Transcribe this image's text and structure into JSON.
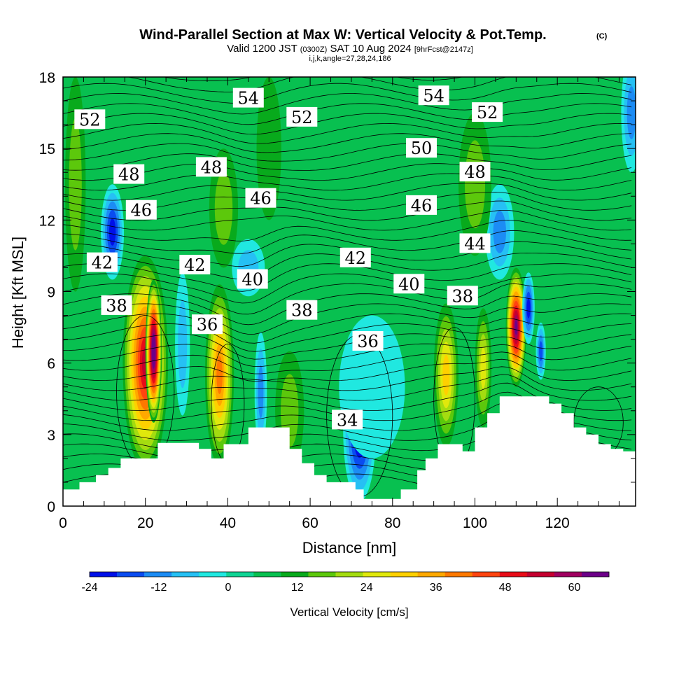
{
  "chart_data": {
    "type": "heatmap",
    "title": "Wind-Parallel Section at Max W: Vertical Velocity & Pot.Temp.",
    "title_mark": "(C)",
    "subtitle_main": "Valid 1200 JST",
    "subtitle_utc": "(0300Z)",
    "subtitle_date": "SAT 10 Aug 2024",
    "subtitle_fcst": "[9hrFcst@2147z]",
    "subtitle_indices": "i,j,k,angle=27,28,24,186",
    "xlabel": "Distance [nm]",
    "ylabel": "Height [Kft MSL]",
    "xlim": [
      0,
      139
    ],
    "ylim": [
      0,
      18
    ],
    "xticks": [
      "0",
      "20",
      "40",
      "60",
      "80",
      "100",
      "120"
    ],
    "yticks": [
      "0",
      "3",
      "6",
      "9",
      "12",
      "15",
      "18"
    ],
    "colorbar": {
      "label": "Vertical Velocity [cm/s]",
      "min": -24,
      "max": 66,
      "step": 4,
      "tick_labels": [
        "-24",
        "-12",
        "0",
        "12",
        "24",
        "36",
        "48",
        "60"
      ],
      "colors": [
        "#0010e8",
        "#0a4cf0",
        "#1c8cf4",
        "#26c0f4",
        "#20e8e0",
        "#10d494",
        "#08c050",
        "#08aa1c",
        "#5cc80c",
        "#a4dc10",
        "#e0e80c",
        "#ffd000",
        "#ffa800",
        "#ff7800",
        "#ff4410",
        "#e80c18",
        "#c40030",
        "#a00060",
        "#6c0088"
      ]
    },
    "terrain_kft": [
      [
        0,
        0.7
      ],
      [
        4,
        1.0
      ],
      [
        8,
        1.3
      ],
      [
        11,
        1.6
      ],
      [
        14,
        2.0
      ],
      [
        23,
        2.65
      ],
      [
        33,
        2.4
      ],
      [
        36,
        2.0
      ],
      [
        39,
        2.6
      ],
      [
        45,
        3.3
      ],
      [
        55,
        2.4
      ],
      [
        58,
        1.8
      ],
      [
        61,
        1.3
      ],
      [
        64,
        1.0
      ],
      [
        71,
        0.7
      ],
      [
        73,
        0.3
      ],
      [
        79,
        0.3
      ],
      [
        82,
        0.7
      ],
      [
        86,
        1.5
      ],
      [
        88,
        2.0
      ],
      [
        91,
        2.6
      ],
      [
        97,
        2.3
      ],
      [
        100,
        3.3
      ],
      [
        103,
        3.9
      ],
      [
        106,
        4.6
      ],
      [
        115,
        4.6
      ],
      [
        118,
        4.3
      ],
      [
        121,
        3.9
      ],
      [
        124,
        3.3
      ],
      [
        127,
        3.0
      ],
      [
        130,
        2.6
      ],
      [
        133,
        2.4
      ],
      [
        136,
        2.3
      ],
      [
        139,
        2.3
      ]
    ],
    "vertical_velocity_cells": [
      {
        "x": 3,
        "y": 13.5,
        "rx": 2.5,
        "ry": 4.5,
        "w": 8
      },
      {
        "x": 12,
        "y": 11.5,
        "rx": 2.8,
        "ry": 2.0,
        "w": -20
      },
      {
        "x": 20,
        "y": 6.0,
        "rx": 5.5,
        "ry": 4.5,
        "w": 40
      },
      {
        "x": 22,
        "y": 6.5,
        "rx": 2.0,
        "ry": 3.0,
        "w": 56
      },
      {
        "x": 29,
        "y": 6.8,
        "rx": 1.8,
        "ry": 3.0,
        "w": -10
      },
      {
        "x": 38,
        "y": 5.5,
        "rx": 3.5,
        "ry": 3.8,
        "w": 28
      },
      {
        "x": 48,
        "y": 4.8,
        "rx": 1.5,
        "ry": 2.5,
        "w": -14
      },
      {
        "x": 55,
        "y": 4.0,
        "rx": 3.5,
        "ry": 2.5,
        "w": 10
      },
      {
        "x": 72,
        "y": 3.2,
        "rx": 4.0,
        "ry": 3.0,
        "w": -24
      },
      {
        "x": 75,
        "y": 5.0,
        "rx": 8.0,
        "ry": 3.0,
        "w": -6
      },
      {
        "x": 93,
        "y": 5.5,
        "rx": 3.0,
        "ry": 3.0,
        "w": 20
      },
      {
        "x": 102,
        "y": 5.8,
        "rx": 2.0,
        "ry": 2.5,
        "w": 16
      },
      {
        "x": 110,
        "y": 7.5,
        "rx": 2.5,
        "ry": 2.5,
        "w": 50
      },
      {
        "x": 113,
        "y": 8.3,
        "rx": 1.5,
        "ry": 1.5,
        "w": -22
      },
      {
        "x": 116,
        "y": 6.5,
        "rx": 1.2,
        "ry": 1.2,
        "w": -16
      },
      {
        "x": 106,
        "y": 11.5,
        "rx": 3.5,
        "ry": 2.0,
        "w": -12
      },
      {
        "x": 100,
        "y": 13.5,
        "rx": 4.0,
        "ry": 3.0,
        "w": 8
      },
      {
        "x": 39,
        "y": 12.5,
        "rx": 3.5,
        "ry": 2.5,
        "w": 10
      },
      {
        "x": 45,
        "y": 10.0,
        "rx": 4.0,
        "ry": 1.2,
        "w": -10
      },
      {
        "x": 50,
        "y": 15.0,
        "rx": 3.0,
        "ry": 3.0,
        "w": 6
      },
      {
        "x": 138,
        "y": 16.5,
        "rx": 2.5,
        "ry": 2.5,
        "w": -12
      }
    ],
    "theta_contour_labels": [
      {
        "text": "52",
        "x": 6.5,
        "y": 16.2
      },
      {
        "text": "54",
        "x": 45,
        "y": 17.1
      },
      {
        "text": "52",
        "x": 58,
        "y": 16.3
      },
      {
        "text": "54",
        "x": 90,
        "y": 17.2
      },
      {
        "text": "52",
        "x": 103,
        "y": 16.5
      },
      {
        "text": "48",
        "x": 16,
        "y": 13.9
      },
      {
        "text": "48",
        "x": 36,
        "y": 14.2
      },
      {
        "text": "50",
        "x": 87,
        "y": 15.0
      },
      {
        "text": "48",
        "x": 100,
        "y": 14.0
      },
      {
        "text": "46",
        "x": 19,
        "y": 12.4
      },
      {
        "text": "46",
        "x": 48,
        "y": 12.9
      },
      {
        "text": "46",
        "x": 87,
        "y": 12.6
      },
      {
        "text": "44",
        "x": 100,
        "y": 11.0
      },
      {
        "text": "42",
        "x": 9.5,
        "y": 10.2
      },
      {
        "text": "42",
        "x": 32,
        "y": 10.1
      },
      {
        "text": "40",
        "x": 46,
        "y": 9.5
      },
      {
        "text": "42",
        "x": 71,
        "y": 10.4
      },
      {
        "text": "40",
        "x": 84,
        "y": 9.3
      },
      {
        "text": "38",
        "x": 97,
        "y": 8.8
      },
      {
        "text": "38",
        "x": 13,
        "y": 8.4
      },
      {
        "text": "36",
        "x": 35,
        "y": 7.6
      },
      {
        "text": "38",
        "x": 58,
        "y": 8.2
      },
      {
        "text": "36",
        "x": 74,
        "y": 6.9
      },
      {
        "text": "34",
        "x": 69,
        "y": 3.6
      }
    ]
  }
}
